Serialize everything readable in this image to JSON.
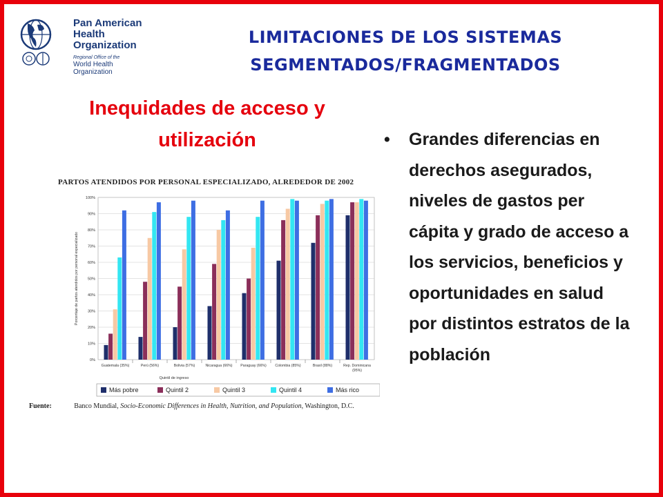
{
  "org": {
    "line1": "Pan American",
    "line2": "Health",
    "line3": "Organization",
    "sub1": "Regional Office of the",
    "sub2": "World Health Organization"
  },
  "slide": {
    "title_line1": "LIMITACIONES DE LOS SISTEMAS",
    "title_line2": "SEGMENTADOS/FRAGMENTADOS",
    "subtitle_line1": "Inequidades de acceso y",
    "subtitle_line2": "utilización",
    "bullet": "Grandes diferencias en derechos asegurados, niveles de gastos per cápita y grado de acceso a los servicios, beneficios y oportunidades en salud por distintos estratos de la población"
  },
  "source": {
    "label": "Fuente:",
    "pre": "Banco Mundial,",
    "pub": "Socio-Economic Differences in Health, Nutrition, and Population,",
    "post": "Washington, D.C."
  },
  "colors": {
    "frame": "#e8000b",
    "title": "#1a2a9c",
    "subtitle": "#e5000d",
    "series": [
      "#1f2f6b",
      "#8b2f5a",
      "#f7c9a4",
      "#33e6f2",
      "#3e6ee3"
    ]
  },
  "chart_data": {
    "type": "bar",
    "title": "PARTOS ATENDIDOS POR PERSONAL ESPECIALIZADO, ALREDEDOR DE 2002",
    "xlabel": "Quintil de ingreso",
    "ylabel": "Porcentaje de partos atendidos por personal especializado",
    "ylim": [
      0,
      100
    ],
    "yticks": [
      "0%",
      "10%",
      "20%",
      "30%",
      "40%",
      "50%",
      "60%",
      "70%",
      "80%",
      "90%",
      "100%"
    ],
    "categories": [
      "Guatemala (35%)",
      "Perú (56%)",
      "Bolivia (57%)",
      "Nicaragua (66%)",
      "Paraguay (66%)",
      "Colombia (85%)",
      "Brasil (88%)",
      "Rep. Dominicana"
    ],
    "category_sublabels": [
      "",
      "",
      "",
      "",
      "",
      "",
      "",
      "(95%)"
    ],
    "series": [
      {
        "name": "Más pobre",
        "values": [
          9,
          14,
          20,
          33,
          41,
          61,
          72,
          89
        ]
      },
      {
        "name": "Quintil 2",
        "values": [
          16,
          48,
          45,
          59,
          50,
          86,
          89,
          97
        ]
      },
      {
        "name": "Quintil 3",
        "values": [
          31,
          75,
          68,
          80,
          69,
          93,
          96,
          97
        ]
      },
      {
        "name": "Quintil 4",
        "values": [
          63,
          91,
          88,
          86,
          88,
          99,
          98,
          99
        ]
      },
      {
        "name": "Más rico",
        "values": [
          92,
          97,
          98,
          92,
          98,
          98,
          99,
          98
        ]
      }
    ],
    "legend": "bottom",
    "grid": true
  }
}
